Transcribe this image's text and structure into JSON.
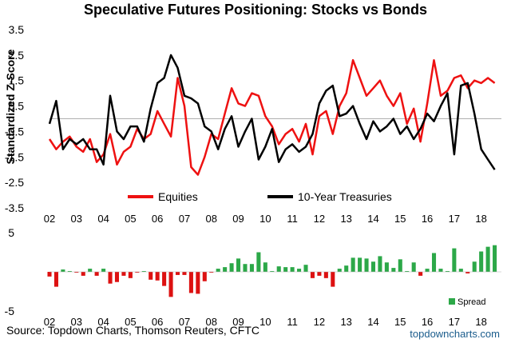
{
  "title": "Speculative Futures Positioning: Stocks vs Bonds",
  "source": "Source: Topdown Charts, Thomson Reuters, CFTC",
  "watermark": "topdowncharts.com",
  "colors": {
    "equities": "#ee1111",
    "treasuries": "#000000",
    "spread_pos": "#2ca848",
    "spread_neg": "#dd1111",
    "zero_line": "#b0b0b0"
  },
  "chart_data": [
    {
      "type": "line",
      "ylabel": "Standardized Z-Score",
      "ylim": [
        -3.5,
        3.5
      ],
      "yticks": [
        "3.5",
        "2.5",
        "1.5",
        "0.5",
        "-0.5",
        "-1.5",
        "-2.5",
        "-3.5"
      ],
      "ytick_values": [
        3.5,
        2.5,
        1.5,
        0.5,
        -0.5,
        -1.5,
        -2.5,
        -3.5
      ],
      "xlim": [
        2002,
        2018.75
      ],
      "xtick_labels": [
        "02",
        "03",
        "04",
        "05",
        "06",
        "07",
        "08",
        "09",
        "10",
        "11",
        "12",
        "13",
        "14",
        "15",
        "16",
        "17",
        "18"
      ],
      "legend": [
        "Equities",
        "10-Year Treasuries"
      ],
      "x": [
        2002.0,
        2002.25,
        2002.5,
        2002.75,
        2003.0,
        2003.25,
        2003.5,
        2003.75,
        2004.0,
        2004.25,
        2004.5,
        2004.75,
        2005.0,
        2005.25,
        2005.5,
        2005.75,
        2006.0,
        2006.25,
        2006.5,
        2006.75,
        2007.0,
        2007.25,
        2007.5,
        2007.75,
        2008.0,
        2008.25,
        2008.5,
        2008.75,
        2009.0,
        2009.25,
        2009.5,
        2009.75,
        2010.0,
        2010.25,
        2010.5,
        2010.75,
        2011.0,
        2011.25,
        2011.5,
        2011.75,
        2012.0,
        2012.25,
        2012.5,
        2012.75,
        2013.0,
        2013.25,
        2013.5,
        2013.75,
        2014.0,
        2014.25,
        2014.5,
        2014.75,
        2015.0,
        2015.25,
        2015.5,
        2015.75,
        2016.0,
        2016.25,
        2016.5,
        2016.75,
        2017.0,
        2017.25,
        2017.5,
        2017.75,
        2018.0,
        2018.25,
        2018.5
      ],
      "series": [
        {
          "name": "Equities",
          "values": [
            -0.8,
            -1.2,
            -0.9,
            -0.7,
            -1.1,
            -1.3,
            -0.8,
            -1.7,
            -1.4,
            -0.6,
            -1.8,
            -1.3,
            -1.1,
            -0.4,
            -0.8,
            -0.6,
            0.3,
            -0.2,
            -0.7,
            1.6,
            0.5,
            -1.9,
            -2.2,
            -1.5,
            -0.6,
            -0.8,
            0.2,
            1.2,
            0.6,
            0.5,
            1.0,
            0.9,
            0.1,
            -0.3,
            -1.0,
            -0.6,
            -0.4,
            -0.9,
            -0.2,
            -1.4,
            0.1,
            0.3,
            -0.6,
            0.5,
            1.0,
            2.3,
            1.6,
            0.9,
            1.2,
            1.5,
            0.9,
            0.5,
            1.0,
            -0.2,
            0.4,
            -0.9,
            0.6,
            2.3,
            0.9,
            1.1,
            1.6,
            1.7,
            1.2,
            1.5,
            1.4,
            1.6,
            1.4
          ]
        },
        {
          "name": "10-Year Treasuries",
          "values": [
            -0.2,
            0.7,
            -1.2,
            -0.8,
            -1.0,
            -0.8,
            -1.2,
            -1.2,
            -1.8,
            0.9,
            -0.5,
            -0.8,
            -0.3,
            -0.3,
            -0.9,
            0.4,
            1.4,
            1.6,
            2.5,
            2.0,
            0.9,
            0.8,
            0.6,
            -0.3,
            -0.5,
            -1.2,
            -0.4,
            0.1,
            -1.1,
            -0.5,
            0.0,
            -1.6,
            -1.1,
            -0.4,
            -1.7,
            -1.2,
            -1.0,
            -1.3,
            -1.1,
            -0.6,
            0.6,
            1.1,
            1.3,
            0.1,
            0.2,
            0.5,
            -0.2,
            -0.8,
            -0.1,
            -0.5,
            -0.3,
            0.0,
            -0.6,
            -0.3,
            -0.8,
            -0.4,
            0.2,
            -0.1,
            0.5,
            1.0,
            -1.4,
            1.3,
            1.4,
            0.2,
            -1.2,
            -1.6,
            -2.0
          ]
        }
      ]
    },
    {
      "type": "bar",
      "ylim": [
        -5,
        5
      ],
      "yticks": [
        "5",
        "-5"
      ],
      "ytick_values": [
        5,
        -5
      ],
      "xtick_labels": [
        "02",
        "03",
        "04",
        "05",
        "06",
        "07",
        "08",
        "09",
        "10",
        "11",
        "12",
        "13",
        "14",
        "15",
        "16",
        "17",
        "18"
      ],
      "legend": [
        "Spread"
      ],
      "series": [
        {
          "name": "Spread",
          "values_from": "Equities minus 10-Year Treasuries"
        }
      ]
    }
  ]
}
